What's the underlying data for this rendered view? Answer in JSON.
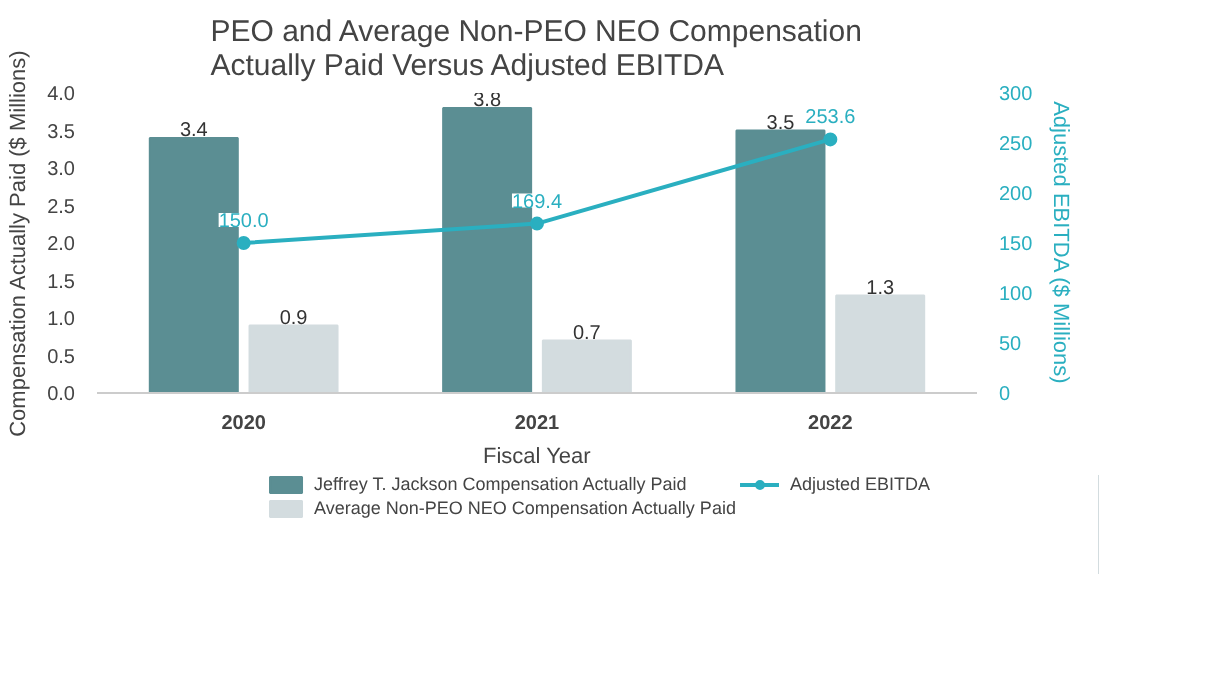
{
  "chart_data": {
    "type": "bar",
    "title": "PEO and Average Non-PEO NEO Compensation Actually Paid Versus Adjusted EBITDA",
    "xlabel": "Fiscal Year",
    "ylabel": "Compensation Actually Paid ($ Millions)",
    "y2label": "Adjusted EBITDA ($ Millions)",
    "categories": [
      "2020",
      "2021",
      "2022"
    ],
    "series": [
      {
        "name": "Jeffrey T. Jackson Compensation Actually Paid",
        "color": "#5b8e93",
        "values": [
          3.4,
          3.8,
          3.5
        ]
      },
      {
        "name": "Average Non-PEO NEO Compensation Actually Paid",
        "color": "#d3dcdf",
        "values": [
          0.9,
          0.7,
          1.3
        ]
      },
      {
        "name": "Adjusted EBITDA",
        "type": "line",
        "axis": "y2",
        "color": "#2aafc0",
        "values": [
          150.0,
          169.4,
          253.6
        ],
        "value_labels": [
          "150.0",
          "169.4",
          "253.6"
        ],
        "marker": "circle"
      }
    ],
    "ylim": [
      0,
      4
    ],
    "yticks": [
      {
        "value": 0,
        "label": "0.0"
      },
      {
        "value": 0.5,
        "label": "0.5"
      },
      {
        "value": 1,
        "label": "1.0"
      },
      {
        "value": 1.5,
        "label": "1.5"
      },
      {
        "value": 2,
        "label": "2.0"
      },
      {
        "value": 2.5,
        "label": "2.5"
      },
      {
        "value": 3,
        "label": "3.0"
      },
      {
        "value": 3.5,
        "label": "3.5"
      },
      {
        "value": 4,
        "label": "4.0"
      }
    ],
    "y2lim": [
      0,
      300
    ],
    "y2ticks": [
      0,
      50,
      100,
      150,
      200,
      250,
      300
    ],
    "data_labels": true,
    "legend": "bottom",
    "grid": false
  }
}
